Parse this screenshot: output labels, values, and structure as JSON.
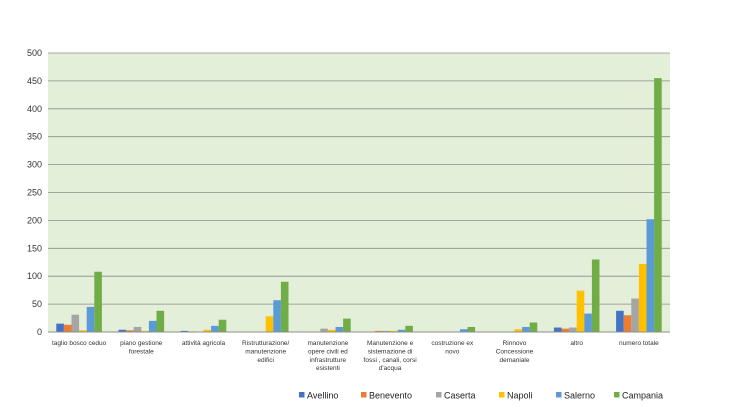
{
  "chart_data": {
    "type": "bar",
    "title": "",
    "xlabel": "",
    "ylabel": "",
    "ylim": [
      0,
      500
    ],
    "yticks": [
      0,
      50,
      100,
      150,
      200,
      250,
      300,
      350,
      400,
      450,
      500
    ],
    "grid": true,
    "legend_position": "bottom-right",
    "plot_background": "#e3efd9",
    "categories": [
      [
        "taglio bosco ceduo"
      ],
      [
        "piano gestione",
        "forestale"
      ],
      [
        "attività agricola"
      ],
      [
        "Ristrutturazione/",
        "manutenzione",
        "edifici"
      ],
      [
        "manutenzione",
        "opere civili ed",
        "infrastrutture",
        "esistenti"
      ],
      [
        "Manutenzione  e",
        "sistemazione di",
        "fossi , canali, corsi",
        "d'acqua"
      ],
      [
        "costruzione ex",
        "novo"
      ],
      [
        "Rinnovo",
        "Concessione",
        "demaniale"
      ],
      [
        "altro"
      ],
      [
        "numero totale"
      ]
    ],
    "series": [
      {
        "name": "Avellino",
        "color": "#4472c4",
        "values": [
          15,
          4,
          2,
          0,
          0,
          0,
          0,
          0,
          8,
          38
        ]
      },
      {
        "name": "Benevento",
        "color": "#ed7d31",
        "values": [
          13,
          3,
          1,
          0,
          0,
          2,
          0,
          0,
          6,
          30
        ]
      },
      {
        "name": "Caserta",
        "color": "#a5a5a5",
        "values": [
          31,
          9,
          0,
          0,
          6,
          2,
          0,
          0,
          8,
          60
        ]
      },
      {
        "name": "Napoli",
        "color": "#ffc000",
        "values": [
          3,
          2,
          4,
          28,
          4,
          2,
          0,
          5,
          74,
          122
        ]
      },
      {
        "name": "Salerno",
        "color": "#5b9bd5",
        "values": [
          45,
          20,
          11,
          57,
          9,
          4,
          5,
          9,
          33,
          202
        ]
      },
      {
        "name": "Campania",
        "color": "#70ad47",
        "values": [
          108,
          38,
          22,
          90,
          24,
          11,
          9,
          17,
          130,
          455
        ]
      }
    ]
  }
}
